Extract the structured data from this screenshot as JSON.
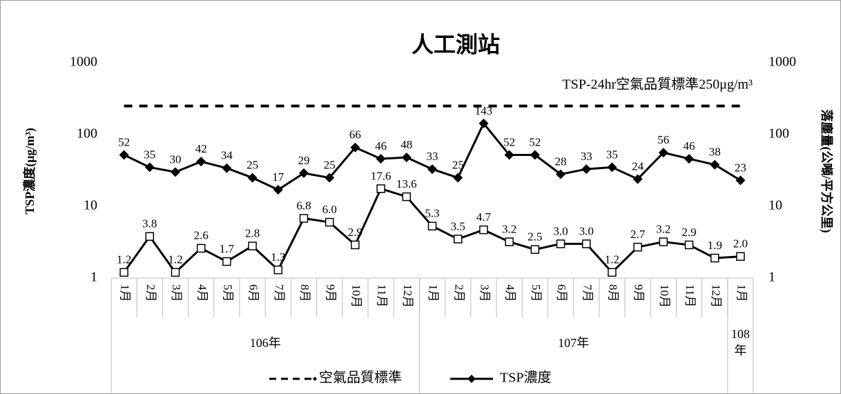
{
  "chart_data": {
    "type": "line",
    "title": "人工測站",
    "annotation": "TSP-24hr空氣品質標準250μg/m³",
    "y_label": "TSP濃度(μg/m³)",
    "y2_label": "落塵量(公噸/平方公里)",
    "categories": [
      "1月",
      "2月",
      "3月",
      "4月",
      "5月",
      "6月",
      "7月",
      "8月",
      "9月",
      "10月",
      "11月",
      "12月",
      "1月",
      "2月",
      "3月",
      "4月",
      "5月",
      "6月",
      "7月",
      "8月",
      "9月",
      "10月",
      "11月",
      "12月",
      "1月"
    ],
    "groups": [
      {
        "label": "106年",
        "span": 12
      },
      {
        "label": "107年",
        "span": 12
      },
      {
        "label": "108年",
        "span": 1
      }
    ],
    "log_scale": true,
    "ylim": [
      1,
      1000
    ],
    "yticks": [
      1,
      10,
      100,
      1000
    ],
    "y2lim": [
      1,
      1000
    ],
    "y2ticks": [
      1,
      10,
      100,
      1000
    ],
    "series": [
      {
        "name": "空氣品質標準",
        "color": "#000000",
        "dash": true,
        "marker": "none",
        "values": [
          250,
          250,
          250,
          250,
          250,
          250,
          250,
          250,
          250,
          250,
          250,
          250,
          250,
          250,
          250,
          250,
          250,
          250,
          250,
          250,
          250,
          250,
          250,
          250,
          250
        ]
      },
      {
        "name": "TSP濃度",
        "color": "#000000",
        "dash": false,
        "marker": "diamond",
        "show_labels": true,
        "values": [
          52,
          35,
          30,
          42,
          34,
          25,
          17,
          29,
          25,
          66,
          46,
          48,
          33,
          25,
          143,
          52,
          52,
          28,
          33,
          35,
          24,
          56,
          46,
          38,
          23
        ]
      },
      {
        "axis": "y2",
        "color": "#000000",
        "dash": false,
        "marker": "square",
        "show_labels": true,
        "values": [
          1.2,
          3.8,
          1.2,
          2.6,
          1.7,
          2.8,
          1.3,
          6.8,
          6.0,
          2.9,
          17.6,
          13.6,
          5.3,
          3.5,
          4.7,
          3.2,
          2.5,
          3.0,
          3.0,
          1.2,
          2.7,
          3.2,
          2.9,
          1.9,
          2.0
        ],
        "value_labels": [
          "1.2",
          "3.8",
          "1.2",
          "2.6",
          "1.7",
          "2.8",
          "1.3",
          "6.8",
          "6.0",
          "2.9",
          "17.6",
          "13.6",
          "5.3",
          "3.5",
          "4.7",
          "3.2",
          "2.5",
          "3.0",
          "3.0",
          "1.2",
          "2.7",
          "3.2",
          "2.9",
          "1.9",
          "2.0"
        ]
      }
    ]
  }
}
